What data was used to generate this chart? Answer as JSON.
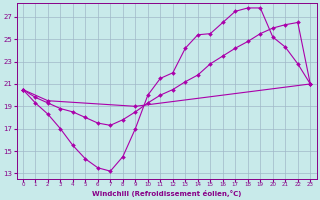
{
  "xlabel": "Windchill (Refroidissement éolien,°C)",
  "background_color": "#c8eaea",
  "grid_color": "#a0b8c8",
  "line_color": "#aa00aa",
  "xlim_min": -0.5,
  "xlim_max": 23.5,
  "ylim_min": 12.5,
  "ylim_max": 28.2,
  "xticks": [
    0,
    1,
    2,
    3,
    4,
    5,
    6,
    7,
    8,
    9,
    10,
    11,
    12,
    13,
    14,
    15,
    16,
    17,
    18,
    19,
    20,
    21,
    22,
    23
  ],
  "yticks": [
    13,
    15,
    17,
    19,
    21,
    23,
    25,
    27
  ],
  "line1_x": [
    0,
    1,
    2,
    3,
    4,
    5,
    6,
    7,
    8,
    9,
    10,
    11,
    12,
    13,
    14,
    15,
    16,
    17,
    18,
    19,
    20,
    21,
    22,
    23
  ],
  "line1_y": [
    20.5,
    19.3,
    18.3,
    17.0,
    15.5,
    14.3,
    13.5,
    13.2,
    14.5,
    17.0,
    20.0,
    21.5,
    22.0,
    24.2,
    25.4,
    25.5,
    26.5,
    27.5,
    27.8,
    27.8,
    25.2,
    24.3,
    22.8,
    21.0
  ],
  "line2_x": [
    0,
    1,
    2,
    3,
    4,
    5,
    6,
    7,
    8,
    9,
    10,
    11,
    12,
    13,
    14,
    15,
    16,
    17,
    18,
    19,
    20,
    21,
    22,
    23
  ],
  "line2_y": [
    20.5,
    19.8,
    19.3,
    18.8,
    18.5,
    18.0,
    17.5,
    17.3,
    17.8,
    18.5,
    19.3,
    20.0,
    20.5,
    21.2,
    21.8,
    22.8,
    23.5,
    24.2,
    24.8,
    25.5,
    26.0,
    26.3,
    26.5,
    21.0
  ],
  "line3_x": [
    0,
    2,
    9,
    23
  ],
  "line3_y": [
    20.5,
    19.5,
    19.0,
    21.0
  ]
}
